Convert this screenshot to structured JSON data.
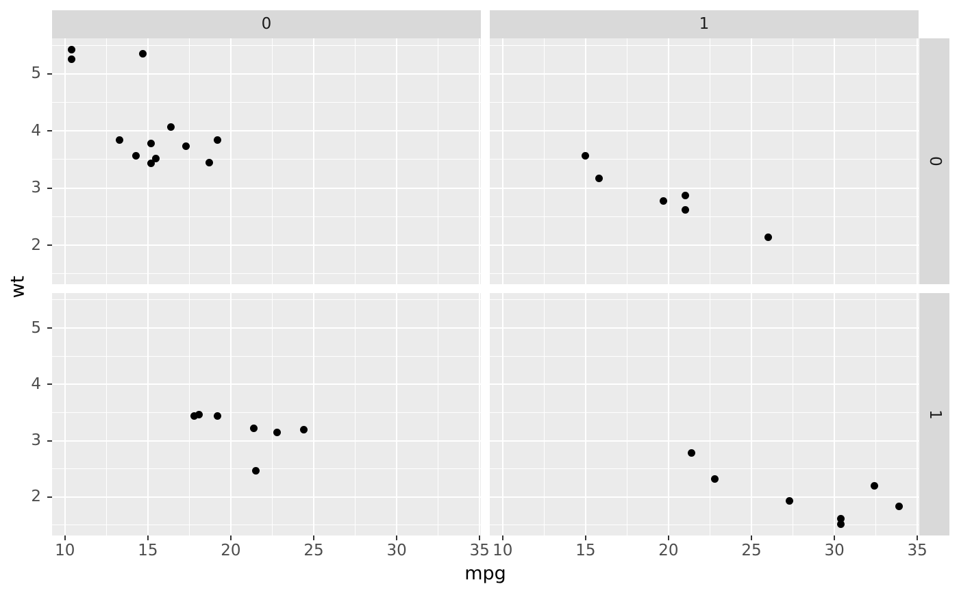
{
  "chart_data": {
    "type": "scatter",
    "title": "",
    "xlabel": "mpg",
    "ylabel": "wt",
    "xlim": [
      9.225,
      35.075
    ],
    "ylim": [
      1.317,
      5.62
    ],
    "x_ticks": [
      10,
      15,
      20,
      25,
      30,
      35
    ],
    "y_ticks": [
      2,
      3,
      4,
      5
    ],
    "x_minor_ticks": [
      12.5,
      17.5,
      22.5,
      27.5,
      32.5
    ],
    "y_minor_ticks": [
      1.5,
      2.5,
      3.5,
      4.5,
      5.5
    ],
    "grid": "on",
    "legend_position": "none",
    "facet": {
      "col_labels": [
        "0",
        "1"
      ],
      "row_labels": [
        "0",
        "1"
      ]
    },
    "panels": [
      {
        "row_label": "0",
        "col_label": "0",
        "points": [
          [
            10.4,
            5.424
          ],
          [
            10.4,
            5.25
          ],
          [
            14.7,
            5.345
          ],
          [
            13.3,
            3.84
          ],
          [
            14.3,
            3.57
          ],
          [
            15.2,
            3.78
          ],
          [
            15.2,
            3.435
          ],
          [
            15.5,
            3.52
          ],
          [
            16.4,
            4.07
          ],
          [
            17.3,
            3.73
          ],
          [
            18.7,
            3.44
          ],
          [
            19.2,
            3.845
          ]
        ]
      },
      {
        "row_label": "0",
        "col_label": "1",
        "points": [
          [
            15.0,
            3.57
          ],
          [
            15.8,
            3.17
          ],
          [
            19.7,
            2.77
          ],
          [
            21.0,
            2.875
          ],
          [
            21.0,
            2.62
          ],
          [
            26.0,
            2.14
          ]
        ]
      },
      {
        "row_label": "1",
        "col_label": "0",
        "points": [
          [
            17.8,
            3.44
          ],
          [
            18.1,
            3.46
          ],
          [
            19.2,
            3.44
          ],
          [
            21.4,
            3.215
          ],
          [
            21.5,
            2.465
          ],
          [
            22.8,
            3.15
          ],
          [
            24.4,
            3.19
          ]
        ]
      },
      {
        "row_label": "1",
        "col_label": "1",
        "points": [
          [
            21.4,
            2.78
          ],
          [
            22.8,
            2.32
          ],
          [
            27.3,
            1.935
          ],
          [
            30.4,
            1.615
          ],
          [
            30.4,
            1.513
          ],
          [
            32.4,
            2.2
          ],
          [
            33.9,
            1.835
          ]
        ]
      }
    ],
    "colors": {
      "figure_bg": "#ffffff",
      "panel_bg": "#ebebeb",
      "strip_bg": "#d9d9d9",
      "gridline": "#ffffff",
      "point": "#000000",
      "tick_text": "#4d4d4d",
      "axis_title_text": "#000000",
      "strip_text": "#1a1a1a",
      "tick_mark": "#333333"
    }
  }
}
